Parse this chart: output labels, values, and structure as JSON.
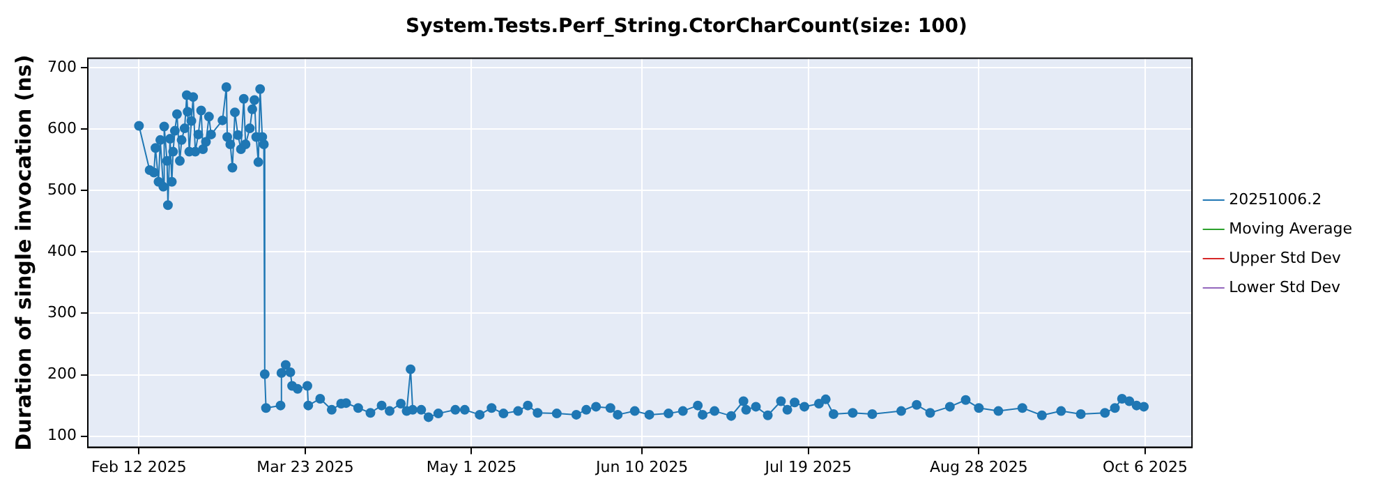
{
  "chart_data": {
    "type": "line",
    "title": "System.Tests.Perf_String.CtorCharCount(size: 100)",
    "ylabel": "Duration of single invocation (ns)",
    "xlim": [
      "2025-01-31",
      "2025-10-17"
    ],
    "xticks": [
      {
        "value": "2025-02-12",
        "label": "Feb 12 2025"
      },
      {
        "value": "2025-03-23",
        "label": "Mar 23 2025"
      },
      {
        "value": "2025-05-01",
        "label": "May 1 2025"
      },
      {
        "value": "2025-06-10",
        "label": "Jun 10 2025"
      },
      {
        "value": "2025-07-19",
        "label": "Jul 19 2025"
      },
      {
        "value": "2025-08-28",
        "label": "Aug 28 2025"
      },
      {
        "value": "2025-10-06",
        "label": "Oct 6 2025"
      }
    ],
    "ylim": [
      82,
      715
    ],
    "yticks": [
      100,
      200,
      300,
      400,
      500,
      600,
      700
    ],
    "grid": true,
    "legend": "right",
    "marker": "circle",
    "x": [
      "2025-02-12",
      "2025-02-14T12:00",
      "2025-02-15T12:00",
      "2025-02-15T21:00",
      "2025-02-16T14:00",
      "2025-02-17",
      "2025-02-17T17:00",
      "2025-02-17T22:00",
      "2025-02-18T14:00",
      "2025-02-18T19:00",
      "2025-02-19T07:00",
      "2025-02-19T17:00",
      "2025-02-20",
      "2025-02-20T10:00",
      "2025-02-20T22:00",
      "2025-02-21T14:00",
      "2025-02-22",
      "2025-02-22T17:00",
      "2025-02-23T05:00",
      "2025-02-23T10:00",
      "2025-02-23T19:00",
      "2025-02-24T07:00",
      "2025-02-24T17:00",
      "2025-02-25T05:00",
      "2025-02-25T22:00",
      "2025-02-26T14:00",
      "2025-02-27",
      "2025-02-27T17:00",
      "2025-02-28T10:00",
      "2025-02-28T22:00",
      "2025-03-03T14:00",
      "2025-03-04T12:00",
      "2025-03-04T17:00",
      "2025-03-05T10:00",
      "2025-03-05T22:00",
      "2025-03-06T12:00",
      "2025-03-07T05:00",
      "2025-03-07T22:00",
      "2025-03-08T14:00",
      "2025-03-09",
      "2025-03-10",
      "2025-03-10T14:00",
      "2025-03-11T02:00",
      "2025-03-11T12:00",
      "2025-03-12",
      "2025-03-12T10:00",
      "2025-03-12T22:00",
      "2025-03-13T07:00",
      "2025-03-13T12:00",
      "2025-03-13T19:00",
      "2025-03-17T05:00",
      "2025-03-17T10:00",
      "2025-03-18T10:00",
      "2025-03-19T12:00",
      "2025-03-19T22:00",
      "2025-03-21T05:00",
      "2025-03-23T12:00",
      "2025-03-23T17:00",
      "2025-03-26T12:00",
      "2025-03-29T05:00",
      "2025-03-31T10:00",
      "2025-04-01T14:00",
      "2025-04-04T10:00",
      "2025-04-07T07:00",
      "2025-04-09T22:00",
      "2025-04-11T19:00",
      "2025-04-14T10:00",
      "2025-04-15T19:00",
      "2025-04-16T17:00",
      "2025-04-17T05:00",
      "2025-04-19T05:00",
      "2025-04-20T22:00",
      "2025-04-23T05:00",
      "2025-04-27T05:00",
      "2025-04-29T10:00",
      "2025-05-02T22:00",
      "2025-05-05T17:00",
      "2025-05-08T12:00",
      "2025-05-11T22:00",
      "2025-05-14T05:00",
      "2025-05-16T12:00",
      "2025-05-21",
      "2025-05-25T14:00",
      "2025-05-27T22:00",
      "2025-05-30T05:00",
      "2025-06-02T14:00",
      "2025-06-04T07:00",
      "2025-06-08T07:00",
      "2025-06-11T17:00",
      "2025-06-16T05:00",
      "2025-06-19T14:00",
      "2025-06-23T02:00",
      "2025-06-24T05:00",
      "2025-06-27",
      "2025-06-30T22:00",
      "2025-07-03T19:00",
      "2025-07-04T10:00",
      "2025-07-06T17:00",
      "2025-07-09T12:00",
      "2025-07-12T14:00",
      "2025-07-14T02:00",
      "2025-07-15T19:00",
      "2025-07-18T02:00",
      "2025-07-21T12:00",
      "2025-07-23T02:00",
      "2025-07-24T22:00",
      "2025-07-29T10:00",
      "2025-08-03",
      "2025-08-09T19:00",
      "2025-08-13T10:00",
      "2025-08-16T14:00",
      "2025-08-21T05:00",
      "2025-08-24T22:00",
      "2025-08-28",
      "2025-09-01T14:00",
      "2025-09-07T05:00",
      "2025-09-11T19:00",
      "2025-09-16T07:00",
      "2025-09-20T22:00",
      "2025-09-26T14:00",
      "2025-09-28T22:00",
      "2025-09-30T14:00",
      "2025-10-02T07:00",
      "2025-10-04",
      "2025-10-05T17:00"
    ],
    "series": [
      {
        "name": "20251006.2",
        "color": "#1f77b4",
        "values": [
          605,
          533,
          529,
          569,
          514,
          582,
          506,
          604,
          548,
          476,
          584,
          514,
          563,
          597,
          624,
          548,
          582,
          601,
          655,
          628,
          563,
          613,
          652,
          563,
          591,
          630,
          567,
          579,
          620,
          591,
          614,
          668,
          587,
          575,
          537,
          627,
          590,
          567,
          649,
          575,
          601,
          632,
          647,
          587,
          546,
          665,
          587,
          575,
          201,
          146,
          150,
          203,
          216,
          204,
          182,
          177,
          182,
          150,
          161,
          143,
          153,
          154,
          146,
          138,
          150,
          141,
          153,
          141,
          209,
          143,
          143,
          131,
          137,
          143,
          143,
          135,
          146,
          137,
          141,
          150,
          138,
          137,
          135,
          143,
          148,
          146,
          135,
          141,
          135,
          137,
          141,
          150,
          135,
          141,
          133,
          157,
          143,
          148,
          134,
          157,
          143,
          155,
          148,
          153,
          160,
          136,
          138,
          136,
          141,
          151,
          138,
          148,
          159,
          146,
          141,
          146,
          134,
          141,
          136,
          138,
          146,
          161,
          157,
          150,
          148
        ]
      },
      {
        "name": "Moving Average",
        "color": "#2ca02c",
        "values": [
          null,
          null,
          null,
          null,
          null,
          null,
          null,
          null,
          null,
          null,
          null,
          null,
          null,
          null,
          null,
          null,
          null,
          null,
          null,
          null,
          null,
          null,
          null,
          null,
          null,
          null,
          null,
          null,
          null,
          null,
          null,
          null,
          null,
          null,
          null,
          null,
          null,
          null,
          null,
          null,
          null,
          null,
          null,
          null,
          null,
          null,
          null,
          null,
          null,
          null,
          null,
          null,
          null,
          null,
          null,
          null,
          null,
          null,
          null,
          null,
          null,
          null,
          null,
          null,
          null,
          null,
          null,
          null,
          null,
          null,
          null,
          null,
          null,
          null,
          null,
          null,
          null,
          null,
          null,
          null,
          null,
          null,
          null,
          null,
          null,
          null,
          null,
          null,
          null,
          null,
          null,
          null,
          null,
          null,
          null,
          null,
          null,
          null,
          null,
          null,
          null,
          null,
          null,
          null,
          null,
          null,
          null,
          null,
          null,
          null,
          null,
          null,
          null,
          null,
          null,
          null,
          null,
          null,
          null,
          null,
          null,
          null,
          null,
          null,
          null
        ]
      },
      {
        "name": "Upper Std Dev",
        "color": "#d62728",
        "values": [
          null,
          null,
          null,
          null,
          null,
          null,
          null,
          null,
          null,
          null,
          null,
          null,
          null,
          null,
          null,
          null,
          null,
          null,
          null,
          null,
          null,
          null,
          null,
          null,
          null,
          null,
          null,
          null,
          null,
          null,
          null,
          null,
          null,
          null,
          null,
          null,
          null,
          null,
          null,
          null,
          null,
          null,
          null,
          null,
          null,
          null,
          null,
          null,
          null,
          null,
          null,
          null,
          null,
          null,
          null,
          null,
          null,
          null,
          null,
          null,
          null,
          null,
          null,
          null,
          null,
          null,
          null,
          null,
          null,
          null,
          null,
          null,
          null,
          null,
          null,
          null,
          null,
          null,
          null,
          null,
          null,
          null,
          null,
          null,
          null,
          null,
          null,
          null,
          null,
          null,
          null,
          null,
          null,
          null,
          null,
          null,
          null,
          null,
          null,
          null,
          null,
          null,
          null,
          null,
          null,
          null,
          null,
          null,
          null,
          null,
          null,
          null,
          null,
          null,
          null,
          null,
          null,
          null,
          null,
          null,
          null,
          null,
          null,
          null,
          null
        ]
      },
      {
        "name": "Lower Std Dev",
        "color": "#9467bd",
        "values": [
          null,
          null,
          null,
          null,
          null,
          null,
          null,
          null,
          null,
          null,
          null,
          null,
          null,
          null,
          null,
          null,
          null,
          null,
          null,
          null,
          null,
          null,
          null,
          null,
          null,
          null,
          null,
          null,
          null,
          null,
          null,
          null,
          null,
          null,
          null,
          null,
          null,
          null,
          null,
          null,
          null,
          null,
          null,
          null,
          null,
          null,
          null,
          null,
          null,
          null,
          null,
          null,
          null,
          null,
          null,
          null,
          null,
          null,
          null,
          null,
          null,
          null,
          null,
          null,
          null,
          null,
          null,
          null,
          null,
          null,
          null,
          null,
          null,
          null,
          null,
          null,
          null,
          null,
          null,
          null,
          null,
          null,
          null,
          null,
          null,
          null,
          null,
          null,
          null,
          null,
          null,
          null,
          null,
          null,
          null,
          null,
          null,
          null,
          null,
          null,
          null,
          null,
          null,
          null,
          null,
          null,
          null,
          null,
          null,
          null,
          null,
          null,
          null,
          null,
          null,
          null,
          null,
          null,
          null,
          null,
          null,
          null,
          null,
          null,
          null
        ]
      }
    ]
  }
}
